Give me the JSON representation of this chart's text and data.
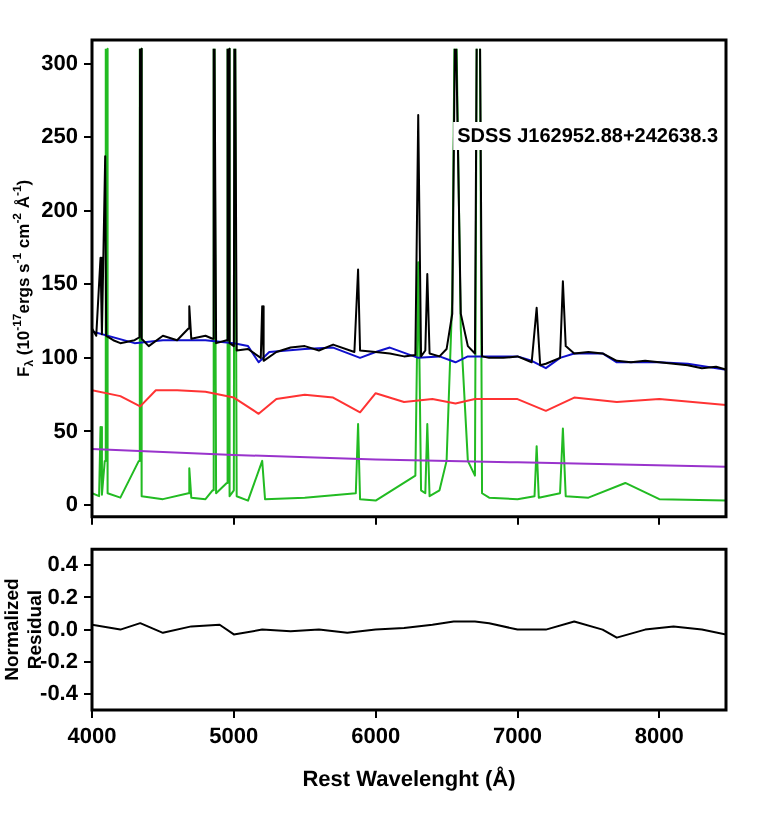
{
  "chart_data": [
    {
      "type": "line",
      "ylabel": "F$_{λ}$ (10$^{-17}$ergs s$^{-1}$ cm$^{-2}$ Å$^{-1}$)",
      "annotations": [
        "SDSS J162952.88+242638.3"
      ],
      "xlim": [
        4000,
        8470
      ],
      "xticks": [
        4000,
        5000,
        6000,
        7000,
        8000
      ],
      "ylim": [
        -8,
        316
      ],
      "yticks": [
        0,
        50,
        100,
        150,
        200,
        250,
        300
      ],
      "tick_labels": "y",
      "grid": false,
      "legend": false,
      "marker": "none",
      "line_style": "solid",
      "series": [
        {
          "color": "#000000",
          "x": [
            4000,
            4030,
            4060,
            4070,
            4093,
            4100,
            4150,
            4200,
            4300,
            4335,
            4339,
            4342,
            4345,
            4350,
            4400,
            4500,
            4600,
            4680,
            4686,
            4700,
            4800,
            4850,
            4858,
            4861,
            4864,
            4875,
            4950,
            4956,
            4959,
            4962,
            4970,
            5000,
            5004,
            5007,
            5010,
            5020,
            5100,
            5190,
            5200,
            5210,
            5300,
            5400,
            5500,
            5600,
            5700,
            5850,
            5876,
            5890,
            6000,
            6100,
            6200,
            6280,
            6300,
            6320,
            6350,
            6364,
            6380,
            6450,
            6500,
            6540,
            6558,
            6563,
            6568,
            6600,
            6650,
            6700,
            6712,
            6724,
            6736,
            6750,
            6800,
            6900,
            7000,
            7100,
            7135,
            7160,
            7200,
            7300,
            7320,
            7340,
            7400,
            7500,
            7600,
            7700,
            7800,
            7900,
            8000,
            8100,
            8200,
            8300,
            8400,
            8470
          ],
          "values": [
            120,
            115,
            168,
            116,
            237,
            115,
            112,
            110,
            112,
            114,
            310,
            null,
            310,
            113,
            108,
            115,
            112,
            120,
            135,
            113,
            115,
            113,
            310,
            null,
            310,
            110,
            112,
            310,
            null,
            310,
            110,
            108,
            310,
            null,
            310,
            105,
            106,
            100,
            135,
            98,
            104,
            107,
            108,
            105,
            109,
            104,
            160,
            105,
            104,
            103,
            101,
            102,
            265,
            101,
            105,
            157,
            103,
            101,
            106,
            130,
            310,
            null,
            310,
            130,
            108,
            103,
            310,
            null,
            310,
            101,
            100,
            100,
            101,
            97,
            134,
            95,
            96,
            100,
            152,
            108,
            103,
            104,
            103,
            98,
            97,
            98,
            97,
            96,
            95,
            93,
            94,
            92
          ]
        },
        {
          "color": "#1010cc",
          "x": [
            4000,
            4300,
            4500,
            4800,
            5000,
            5100,
            5175,
            5250,
            5500,
            5700,
            5890,
            6000,
            6100,
            6300,
            6450,
            6563,
            6650,
            6800,
            7000,
            7100,
            7200,
            7300,
            7400,
            7600,
            7700,
            8000,
            8200,
            8470
          ],
          "values": [
            118,
            110,
            112,
            112,
            110,
            108,
            97,
            104,
            106,
            107,
            100,
            104,
            107,
            100,
            101,
            97,
            101,
            101,
            101,
            98,
            93,
            100,
            103,
            103,
            97,
            97,
            96,
            92
          ]
        },
        {
          "color": "#ff3333",
          "x": [
            4000,
            4200,
            4340,
            4450,
            4600,
            4800,
            5000,
            5175,
            5300,
            5500,
            5700,
            5890,
            6000,
            6200,
            6400,
            6563,
            6700,
            7000,
            7200,
            7400,
            7700,
            8000,
            8470
          ],
          "values": [
            78,
            74,
            67,
            78,
            78,
            77,
            73,
            62,
            72,
            75,
            73,
            63,
            76,
            70,
            72,
            69,
            72,
            72,
            64,
            73,
            70,
            72,
            68
          ]
        },
        {
          "color": "#9933cc",
          "x": [
            4000,
            5000,
            6000,
            7000,
            8470
          ],
          "values": [
            38,
            34,
            31,
            29,
            26
          ]
        },
        {
          "color": "#22bb22",
          "x": [
            4000,
            4050,
            4060,
            4070,
            4090,
            4097,
            4100,
            4103,
            4110,
            4200,
            4330,
            4337,
            4340,
            4343,
            4350,
            4500,
            4680,
            4686,
            4700,
            4800,
            4850,
            4858,
            4861,
            4864,
            4875,
            4950,
            4956,
            4959,
            4962,
            4970,
            5000,
            5004,
            5007,
            5010,
            5020,
            5100,
            5200,
            5220,
            5500,
            5860,
            5876,
            5890,
            6000,
            6280,
            6300,
            6320,
            6350,
            6364,
            6380,
            6450,
            6500,
            6540,
            6555,
            6563,
            6571,
            6600,
            6650,
            6700,
            6712,
            6724,
            6736,
            6750,
            6800,
            7000,
            7120,
            7135,
            7150,
            7300,
            7320,
            7340,
            7500,
            7760,
            8000,
            8470
          ],
          "values": [
            8,
            6,
            53,
            7,
            30,
            310,
            null,
            310,
            8,
            5,
            30,
            310,
            null,
            310,
            6,
            4,
            8,
            25,
            5,
            4,
            10,
            310,
            null,
            310,
            8,
            15,
            310,
            null,
            310,
            6,
            10,
            310,
            null,
            310,
            6,
            3,
            30,
            4,
            5,
            8,
            55,
            4,
            3,
            20,
            165,
            10,
            8,
            55,
            6,
            10,
            30,
            140,
            310,
            null,
            310,
            120,
            30,
            20,
            310,
            null,
            310,
            8,
            5,
            4,
            6,
            40,
            5,
            8,
            52,
            6,
            5,
            15,
            4,
            3
          ]
        }
      ]
    },
    {
      "type": "line",
      "xlabel": "Rest Wavelenght (Å)",
      "ylabel": "Normalized Residual",
      "xlim": [
        4000,
        8470
      ],
      "xticks": [
        4000,
        5000,
        6000,
        7000,
        8000
      ],
      "ylim": [
        -0.5,
        0.5
      ],
      "yticks": [
        0.4,
        0.2,
        {
          "value": 0,
          "label": "0.0"
        },
        -0.2,
        -0.4
      ],
      "grid": false,
      "legend": false,
      "marker": "none",
      "line_style": "solid",
      "series": [
        {
          "color": "#000000",
          "x": [
            4000,
            4200,
            4340,
            4500,
            4700,
            4900,
            5000,
            5200,
            5400,
            5600,
            5800,
            6000,
            6200,
            6400,
            6550,
            6700,
            6800,
            7000,
            7200,
            7400,
            7600,
            7700,
            7900,
            8100,
            8300,
            8470
          ],
          "values": [
            0.03,
            0.0,
            0.04,
            -0.02,
            0.02,
            0.03,
            -0.03,
            0.0,
            -0.01,
            0.0,
            -0.02,
            0.0,
            0.01,
            0.03,
            0.05,
            0.05,
            0.04,
            0.0,
            0.0,
            0.05,
            0.0,
            -0.05,
            0.0,
            0.02,
            0.0,
            -0.03
          ]
        }
      ]
    }
  ]
}
